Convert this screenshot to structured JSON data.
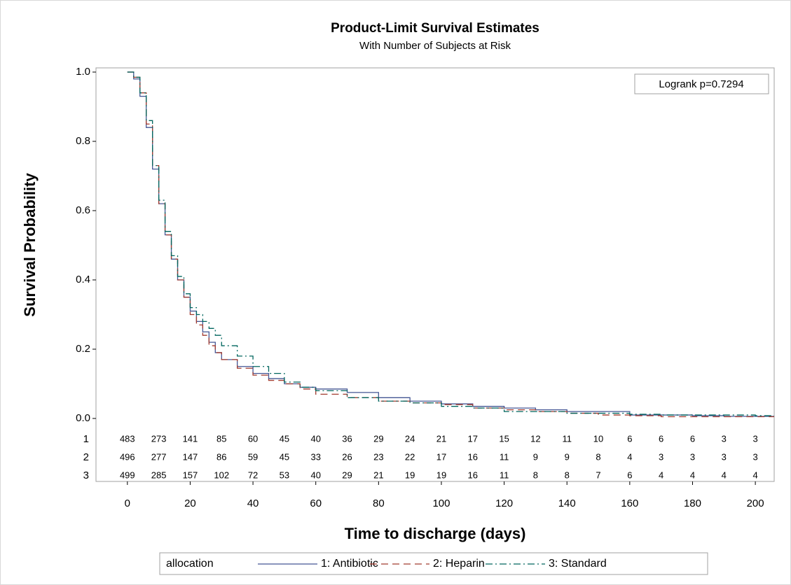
{
  "chart_data": {
    "type": "step",
    "title": "Product-Limit Survival Estimates",
    "subtitle": "With Number of Subjects at Risk",
    "x_label": "Time to discharge (days)",
    "y_label": "Survival Probability",
    "annotation": "Logrank p=0.7294",
    "legend_title": "allocation",
    "xlim": [
      -10,
      206
    ],
    "ylim": [
      0,
      1
    ],
    "xticks": [
      0,
      20,
      40,
      60,
      80,
      100,
      120,
      140,
      160,
      180,
      200
    ],
    "yticks": [
      {
        "value": 0,
        "label": "0.0"
      },
      0.2,
      0.4,
      0.6,
      0.8,
      {
        "value": 1,
        "label": "1.0"
      }
    ],
    "x": [
      0,
      2,
      4,
      6,
      8,
      10,
      12,
      14,
      16,
      18,
      20,
      22,
      24,
      26,
      28,
      30,
      35,
      40,
      45,
      50,
      55,
      60,
      70,
      80,
      90,
      100,
      110,
      120,
      130,
      140,
      150,
      160,
      170,
      180,
      190,
      200,
      206
    ],
    "series": [
      {
        "name": "1: Antibiotic",
        "color": "#445694",
        "dash": "solid",
        "values": [
          1.0,
          0.98,
          0.93,
          0.84,
          0.72,
          0.62,
          0.53,
          0.46,
          0.4,
          0.35,
          0.31,
          0.28,
          0.25,
          0.22,
          0.19,
          0.17,
          0.15,
          0.13,
          0.115,
          0.1,
          0.09,
          0.085,
          0.075,
          0.06,
          0.05,
          0.042,
          0.035,
          0.03,
          0.025,
          0.02,
          0.02,
          0.01,
          0.01,
          0.008,
          0.006,
          0.006,
          0.006
        ]
      },
      {
        "name": "2: Heparin",
        "color": "#a23a2e",
        "dash": "dashed",
        "values": [
          1.0,
          0.985,
          0.94,
          0.85,
          0.73,
          0.62,
          0.53,
          0.46,
          0.4,
          0.35,
          0.3,
          0.27,
          0.24,
          0.21,
          0.19,
          0.17,
          0.145,
          0.125,
          0.11,
          0.1,
          0.085,
          0.07,
          0.06,
          0.05,
          0.045,
          0.04,
          0.03,
          0.025,
          0.02,
          0.015,
          0.01,
          0.008,
          0.005,
          0.005,
          0.005,
          0.005,
          0.005
        ]
      },
      {
        "name": "3: Standard",
        "color": "#01665e",
        "dash": "dash-dot",
        "values": [
          1.0,
          0.985,
          0.94,
          0.86,
          0.73,
          0.63,
          0.54,
          0.47,
          0.41,
          0.36,
          0.32,
          0.3,
          0.28,
          0.26,
          0.24,
          0.21,
          0.18,
          0.15,
          0.13,
          0.105,
          0.09,
          0.08,
          0.06,
          0.05,
          0.045,
          0.035,
          0.03,
          0.02,
          0.02,
          0.015,
          0.015,
          0.012,
          0.01,
          0.01,
          0.01,
          0.008,
          0.008
        ]
      }
    ],
    "at_risk": {
      "x": [
        0,
        10,
        20,
        30,
        40,
        50,
        60,
        70,
        80,
        90,
        100,
        110,
        120,
        130,
        140,
        150,
        160,
        170,
        180,
        190,
        200
      ],
      "rows": [
        {
          "label": "1",
          "values": [
            483,
            273,
            141,
            85,
            60,
            45,
            40,
            36,
            29,
            24,
            21,
            17,
            15,
            12,
            11,
            10,
            6,
            6,
            6,
            3,
            3
          ]
        },
        {
          "label": "2",
          "values": [
            496,
            277,
            147,
            86,
            59,
            45,
            33,
            26,
            23,
            22,
            17,
            16,
            11,
            9,
            9,
            8,
            4,
            3,
            3,
            3,
            3
          ]
        },
        {
          "label": "3",
          "values": [
            499,
            285,
            157,
            102,
            72,
            53,
            40,
            29,
            21,
            19,
            19,
            16,
            11,
            8,
            8,
            7,
            6,
            4,
            4,
            4,
            4
          ]
        }
      ]
    }
  }
}
